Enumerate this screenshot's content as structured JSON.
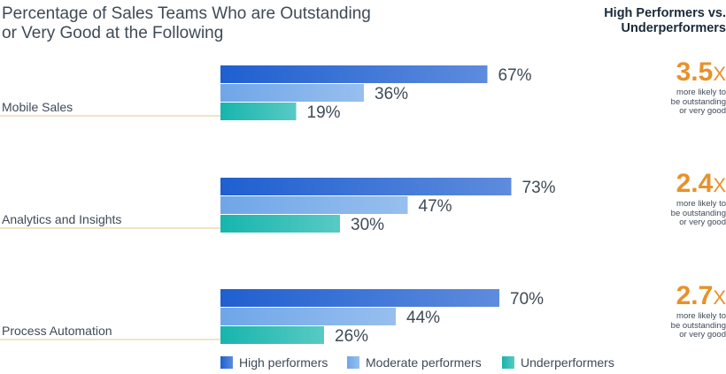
{
  "title_lines": [
    "Percentage of Sales Teams Who are Outstanding",
    "or Very Good at the Following"
  ],
  "side_heading_lines": [
    "High Performers vs.",
    "Underperformers"
  ],
  "multipliers": [
    {
      "value": "3.5",
      "unit": "X",
      "caption_lines": [
        "more likely to",
        "be outstanding",
        "or very good"
      ]
    },
    {
      "value": "2.4",
      "unit": "X",
      "caption_lines": [
        "more likely to",
        "be outstanding",
        "or very good"
      ]
    },
    {
      "value": "2.7",
      "unit": "X",
      "caption_lines": [
        "more likely to",
        "be outstanding",
        "or very good"
      ]
    }
  ],
  "colors": {
    "high": "#1f5fd0",
    "moderate": "#6fa6e8",
    "under": "#17b5ad",
    "accent": "#e8912a",
    "category_rule": "#e4c98a",
    "text": "#3f4a57"
  },
  "chart_data": {
    "type": "bar",
    "orientation": "horizontal",
    "categories": [
      "Mobile Sales",
      "Analytics and Insights",
      "Process Automation"
    ],
    "series": [
      {
        "name": "High performers",
        "values": [
          67,
          73,
          70
        ],
        "labels": [
          "67%",
          "73%",
          "70%"
        ]
      },
      {
        "name": "Moderate performers",
        "values": [
          36,
          47,
          44
        ],
        "labels": [
          "36%",
          "47%",
          "44%"
        ]
      },
      {
        "name": "Underperformers",
        "values": [
          19,
          30,
          26
        ],
        "labels": [
          "19%",
          "30%",
          "26%"
        ]
      }
    ],
    "xlim": [
      0,
      100
    ],
    "grid": false,
    "legend": "bottom"
  }
}
